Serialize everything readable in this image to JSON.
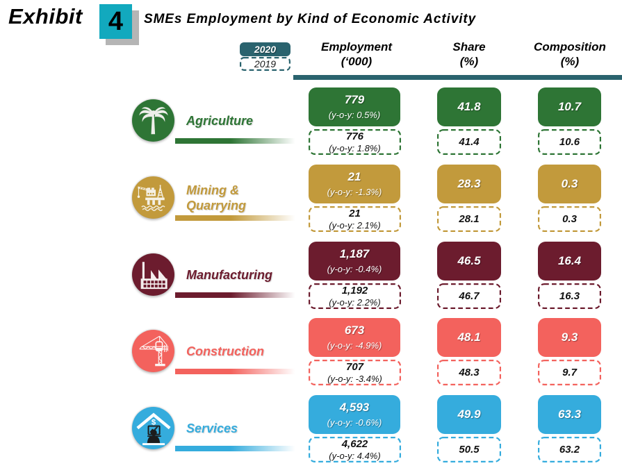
{
  "exhibit": {
    "label": "Exhibit",
    "number": "4",
    "title": "SMEs Employment by Kind of Economic Activity"
  },
  "legend": {
    "current_year": "2020",
    "previous_year": "2019"
  },
  "columns": [
    {
      "line1": "Employment",
      "line2": "(‘000)"
    },
    {
      "line1": "Share",
      "line2": "(%)"
    },
    {
      "line1": "Composition",
      "line2": "(%)"
    }
  ],
  "colors": {
    "agriculture": "#2e7535",
    "mining": "#c29a3c",
    "manufacturing": "#6c1c2e",
    "construction": "#f3625d",
    "services": "#35acdd",
    "legend_teal": "#2a636e",
    "exhibit_badge": "#12a9be",
    "badge_shadow": "#b5b5b5"
  },
  "rows": [
    {
      "name": "Agriculture",
      "label_line1": "Agriculture",
      "label_line2": "",
      "icon": "palm-tree-icon",
      "employment": {
        "y2020": {
          "value": "779",
          "yoy": "(y-o-y: 0.5%)"
        },
        "y2019": {
          "value": "776",
          "yoy": "(y-o-y: 1.8%)"
        }
      },
      "share": {
        "y2020": "41.8",
        "y2019": "41.4"
      },
      "composition": {
        "y2020": "10.7",
        "y2019": "10.6"
      }
    },
    {
      "name": "Mining & Quarrying",
      "label_line1": "Mining &",
      "label_line2": "Quarrying",
      "icon": "oil-rig-icon",
      "employment": {
        "y2020": {
          "value": "21",
          "yoy": "(y-o-y: -1.3%)"
        },
        "y2019": {
          "value": "21",
          "yoy": "(y-o-y: 2.1%)"
        }
      },
      "share": {
        "y2020": "28.3",
        "y2019": "28.1"
      },
      "composition": {
        "y2020": "0.3",
        "y2019": "0.3"
      }
    },
    {
      "name": "Manufacturing",
      "label_line1": "Manufacturing",
      "label_line2": "",
      "icon": "factory-icon",
      "employment": {
        "y2020": {
          "value": "1,187",
          "yoy": "(y-o-y: -0.4%)"
        },
        "y2019": {
          "value": "1,192",
          "yoy": "(y-o-y: 2.2%)"
        }
      },
      "share": {
        "y2020": "46.5",
        "y2019": "46.7"
      },
      "composition": {
        "y2020": "16.4",
        "y2019": "16.3"
      }
    },
    {
      "name": "Construction",
      "label_line1": "Construction",
      "label_line2": "",
      "icon": "tower-crane-icon",
      "employment": {
        "y2020": {
          "value": "673",
          "yoy": "(y-o-y: -4.9%)"
        },
        "y2019": {
          "value": "707",
          "yoy": "(y-o-y: -3.4%)"
        }
      },
      "share": {
        "y2020": "48.1",
        "y2019": "48.3"
      },
      "composition": {
        "y2020": "9.3",
        "y2019": "9.7"
      }
    },
    {
      "name": "Services",
      "label_line1": "Services",
      "label_line2": "",
      "icon": "services-icon",
      "employment": {
        "y2020": {
          "value": "4,593",
          "yoy": "(y-o-y: -0.6%)"
        },
        "y2019": {
          "value": "4,622",
          "yoy": "(y-o-y: 4.4%)"
        }
      },
      "share": {
        "y2020": "49.9",
        "y2019": "50.5"
      },
      "composition": {
        "y2020": "63.3",
        "y2019": "63.2"
      }
    }
  ],
  "chart_data": {
    "type": "table",
    "title": "SMEs Employment by Kind of Economic Activity",
    "categories": [
      "Agriculture",
      "Mining & Quarrying",
      "Manufacturing",
      "Construction",
      "Services"
    ],
    "series": [
      {
        "name": "Employment ('000) 2020",
        "values": [
          779,
          21,
          1187,
          673,
          4593
        ]
      },
      {
        "name": "Employment y-o-y % 2020",
        "values": [
          0.5,
          -1.3,
          -0.4,
          -4.9,
          -0.6
        ]
      },
      {
        "name": "Employment ('000) 2019",
        "values": [
          776,
          21,
          1192,
          707,
          4622
        ]
      },
      {
        "name": "Employment y-o-y % 2019",
        "values": [
          1.8,
          2.1,
          2.2,
          -3.4,
          4.4
        ]
      },
      {
        "name": "Share (%) 2020",
        "values": [
          41.8,
          28.3,
          46.5,
          48.1,
          49.9
        ]
      },
      {
        "name": "Share (%) 2019",
        "values": [
          41.4,
          28.1,
          46.7,
          48.3,
          50.5
        ]
      },
      {
        "name": "Composition (%) 2020",
        "values": [
          10.7,
          0.3,
          16.4,
          9.3,
          63.3
        ]
      },
      {
        "name": "Composition (%) 2019",
        "values": [
          10.6,
          0.3,
          16.3,
          9.7,
          63.2
        ]
      }
    ],
    "legend": [
      "2020",
      "2019"
    ]
  }
}
